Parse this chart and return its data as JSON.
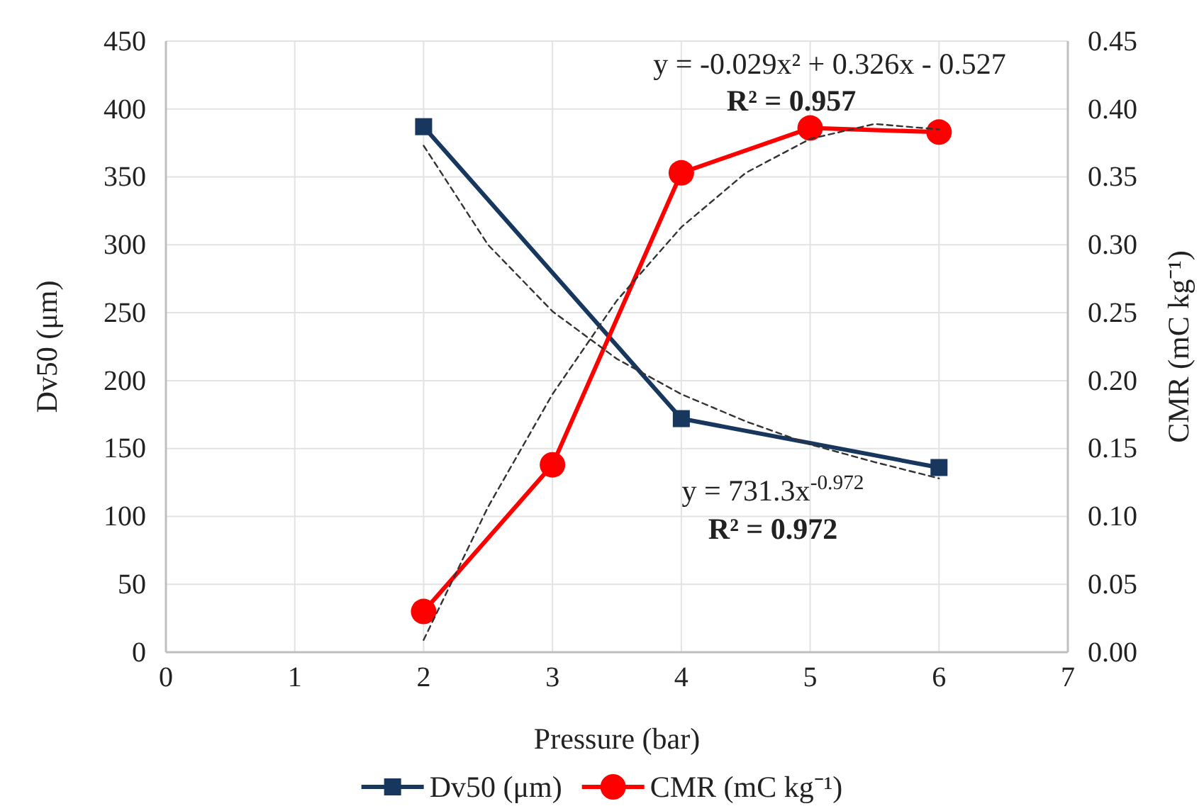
{
  "chart_data": {
    "type": "line",
    "xlabel": "Pressure (bar)",
    "ylabel": "Dv50 (μm)",
    "y2label": "CMR (mC kg⁻¹)",
    "x": [
      2,
      3,
      4,
      5,
      6
    ],
    "xlim": [
      0,
      7
    ],
    "xticks": [
      0,
      1,
      2,
      3,
      4,
      5,
      6,
      7
    ],
    "ylim": [
      0,
      450
    ],
    "yticks": [
      0,
      50,
      100,
      150,
      200,
      250,
      300,
      350,
      400,
      450
    ],
    "y2lim": [
      0,
      0.45
    ],
    "y2ticks": [
      {
        "value": 0,
        "label": "0.00"
      },
      {
        "value": 0.05,
        "label": "0.05"
      },
      {
        "value": 0.1,
        "label": "0.10"
      },
      {
        "value": 0.15,
        "label": "0.15"
      },
      {
        "value": 0.2,
        "label": "0.20"
      },
      {
        "value": 0.25,
        "label": "0.25"
      },
      {
        "value": 0.3,
        "label": "0.30"
      },
      {
        "value": 0.35,
        "label": "0.35"
      },
      {
        "value": 0.4,
        "label": "0.40"
      },
      {
        "value": 0.45,
        "label": "0.45"
      }
    ],
    "grid": true,
    "legend": "bottom",
    "series": [
      {
        "name": "Dv50 (μm)",
        "color": "#17375e",
        "marker": "square",
        "line_style": "solid",
        "x": [
          2,
          4,
          6
        ],
        "values": [
          387,
          172,
          136
        ]
      },
      {
        "name": "CMR (mC kg⁻¹)",
        "color": "#ff0000",
        "marker": "circle",
        "line_style": "solid",
        "axis": "y2",
        "values": [
          0.03,
          0.138,
          0.353,
          0.386,
          0.383
        ]
      },
      {
        "type": "line",
        "color": "#333333",
        "marker": "none",
        "line_style": "dashed",
        "x": [
          2,
          2.5,
          3,
          3.5,
          4,
          4.5,
          5,
          5.5,
          6
        ],
        "values": [
          373,
          300,
          251,
          216,
          190,
          170,
          153,
          140,
          128
        ]
      },
      {
        "type": "line",
        "color": "#333333",
        "marker": "none",
        "line_style": "dashed",
        "axis": "y2",
        "x": [
          2,
          2.5,
          3,
          3.5,
          4,
          4.5,
          5,
          5.5,
          6
        ],
        "values": [
          0.009,
          0.107,
          0.19,
          0.259,
          0.313,
          0.353,
          0.378,
          0.389,
          0.385
        ]
      }
    ],
    "annotations": [
      "y = -0.029x² + 0.326x - 0.527",
      "R² = 0.957",
      "y = 731.3x$^{-0.972}$",
      "R² = 0.972"
    ]
  }
}
